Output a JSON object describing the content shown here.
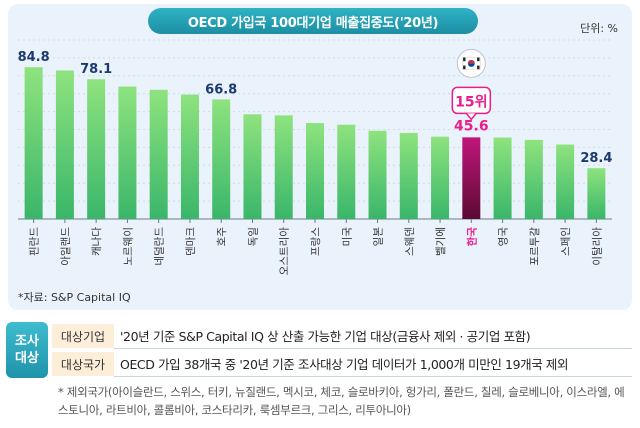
{
  "title": "OECD 가입국 100대기업 매출집중도('20년)",
  "unit": "단위: %",
  "source": "*자료: S&P Capital IQ",
  "highlight": {
    "rank": "15위",
    "flag_icon": "korea-flag-icon",
    "color": "#e91e8c"
  },
  "colors": {
    "bar_top": "#8ee37e",
    "bar_bottom": "#3ab66a",
    "highlight_top": "#c0167a",
    "highlight_bottom": "#5a0a34",
    "panel": "#eaf3fb",
    "title": "#2aa9bd",
    "value_label": "#1d3a6e"
  },
  "chart_data": {
    "type": "bar",
    "title": "OECD 가입국 100대기업 매출집중도('20년)",
    "categories": [
      "핀란드",
      "아일랜드",
      "캐나다",
      "노르웨이",
      "네덜란드",
      "덴마크",
      "호주",
      "독일",
      "오스트리아",
      "프랑스",
      "미국",
      "일본",
      "스웨덴",
      "벨기에",
      "한국",
      "영국",
      "포르투갈",
      "스페인",
      "이탈리아"
    ],
    "values": [
      84.8,
      83.0,
      78.1,
      74.0,
      72.2,
      69.5,
      66.8,
      58.5,
      57.9,
      53.6,
      52.7,
      49.3,
      48.1,
      46.0,
      45.6,
      45.5,
      44.2,
      41.6,
      28.4
    ],
    "labeled_values": [
      "84.8",
      "",
      "78.1",
      "",
      "",
      "",
      "66.8",
      "",
      "",
      "",
      "",
      "",
      "",
      "",
      "45.6",
      "",
      "",
      "",
      "28.4"
    ],
    "highlight_category": "한국",
    "ylim": [
      0,
      100
    ],
    "ylabel": "",
    "xlabel": "",
    "grid": true
  },
  "survey": {
    "box_label": [
      "조사",
      "대상"
    ],
    "rows": [
      {
        "label": "대상기업",
        "text": "'20년 기준 S&P Capital IQ 상 산출 가능한 기업 대상(금융사 제외 · 공기업 포함)"
      },
      {
        "label": "대상국가",
        "text": "OECD 가입 38개국 중 '20년 기준 조사대상 기업 데이터가 1,000개 미만인 19개국 제외"
      }
    ],
    "note": "* 제외국가(아이슬란드, 스위스, 터키, 뉴질랜드, 멕시코, 체코, 슬로바키아, 헝가리, 폴란드, 칠레, 슬로베니아, 이스라엘, 에스토니아, 라트비아, 콜롬비아, 코스타리카, 룩셈부르크, 그리스, 리투아니아)"
  }
}
